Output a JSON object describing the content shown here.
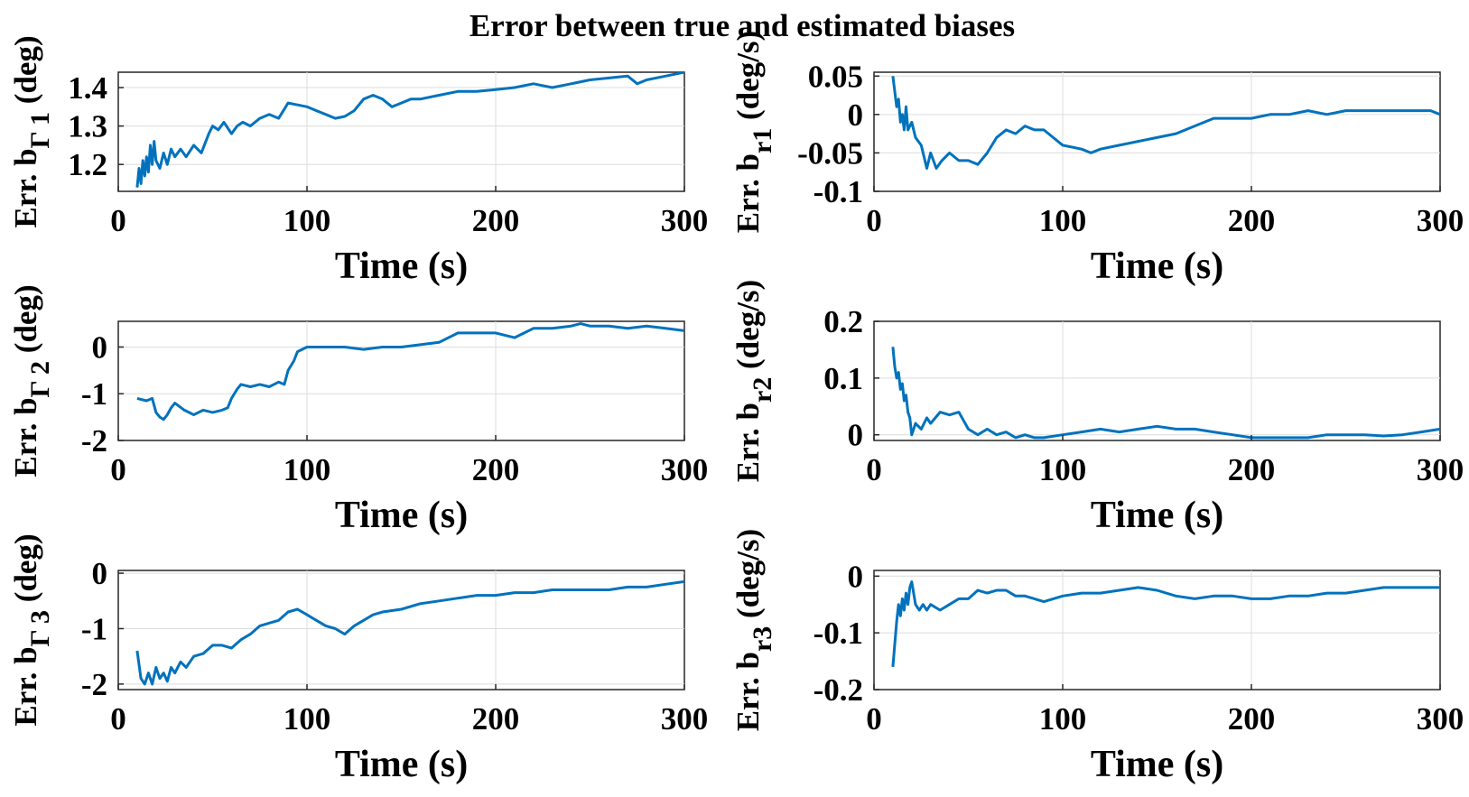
{
  "figure": {
    "title": "Error between true and estimated biases",
    "line_color": "#0072BD"
  },
  "chart_data": [
    {
      "type": "line",
      "ylabel": {
        "main": "Err. b",
        "sub": "Γ 1",
        "unit": " (deg)"
      },
      "xlabel": "Time (s)",
      "xlim": [
        0,
        300
      ],
      "ylim": [
        1.13,
        1.44
      ],
      "xticks": [
        0,
        100,
        200,
        300
      ],
      "xtick_labels": [
        "0",
        "100",
        "200",
        "300"
      ],
      "yticks": [
        1.2,
        1.3,
        1.4
      ],
      "ytick_labels": [
        "1.2",
        "1.3",
        "1.4"
      ],
      "grid": true,
      "series": [
        {
          "x": [
            10,
            11,
            12,
            13,
            14,
            15,
            16,
            17,
            18,
            19,
            20,
            22,
            24,
            26,
            28,
            30,
            33,
            36,
            40,
            44,
            48,
            50,
            53,
            56,
            60,
            63,
            66,
            70,
            75,
            80,
            85,
            90,
            95,
            100,
            105,
            110,
            115,
            120,
            125,
            130,
            135,
            140,
            145,
            150,
            155,
            160,
            170,
            180,
            190,
            200,
            210,
            220,
            230,
            240,
            250,
            260,
            270,
            275,
            280,
            290,
            300
          ],
          "y": [
            1.14,
            1.19,
            1.15,
            1.21,
            1.17,
            1.22,
            1.18,
            1.25,
            1.2,
            1.26,
            1.21,
            1.19,
            1.23,
            1.2,
            1.24,
            1.22,
            1.24,
            1.22,
            1.25,
            1.23,
            1.28,
            1.3,
            1.29,
            1.31,
            1.28,
            1.3,
            1.31,
            1.3,
            1.32,
            1.33,
            1.32,
            1.36,
            1.355,
            1.35,
            1.34,
            1.33,
            1.32,
            1.325,
            1.34,
            1.37,
            1.38,
            1.37,
            1.35,
            1.36,
            1.37,
            1.37,
            1.38,
            1.39,
            1.39,
            1.395,
            1.4,
            1.41,
            1.4,
            1.41,
            1.42,
            1.425,
            1.43,
            1.41,
            1.42,
            1.43,
            1.44
          ]
        }
      ]
    },
    {
      "type": "line",
      "ylabel": {
        "main": "Err. b",
        "sub": "r1",
        "unit": " (deg/s)"
      },
      "xlabel": "Time (s)",
      "xlim": [
        0,
        300
      ],
      "ylim": [
        -0.1,
        0.055
      ],
      "xticks": [
        0,
        100,
        200,
        300
      ],
      "xtick_labels": [
        "0",
        "100",
        "200",
        "300"
      ],
      "yticks": [
        -0.1,
        -0.05,
        0,
        0.05
      ],
      "ytick_labels": [
        "-0.1",
        "-0.05",
        "0",
        "0.05"
      ],
      "grid": true,
      "series": [
        {
          "x": [
            10,
            11,
            12,
            13,
            14,
            15,
            16,
            17,
            18,
            20,
            22,
            25,
            28,
            30,
            33,
            36,
            40,
            45,
            50,
            55,
            60,
            65,
            70,
            75,
            80,
            85,
            90,
            95,
            100,
            110,
            115,
            120,
            130,
            140,
            150,
            160,
            170,
            180,
            190,
            200,
            210,
            220,
            230,
            240,
            250,
            260,
            270,
            280,
            290,
            295,
            300
          ],
          "y": [
            0.05,
            0.03,
            0.01,
            0.02,
            -0.01,
            0.0,
            -0.02,
            0.01,
            -0.02,
            -0.01,
            -0.03,
            -0.04,
            -0.07,
            -0.05,
            -0.07,
            -0.06,
            -0.05,
            -0.06,
            -0.06,
            -0.065,
            -0.05,
            -0.03,
            -0.02,
            -0.025,
            -0.015,
            -0.02,
            -0.02,
            -0.03,
            -0.04,
            -0.045,
            -0.05,
            -0.045,
            -0.04,
            -0.035,
            -0.03,
            -0.025,
            -0.015,
            -0.005,
            -0.005,
            -0.005,
            0.0,
            0.0,
            0.005,
            0.0,
            0.005,
            0.005,
            0.005,
            0.005,
            0.005,
            0.005,
            0.0
          ]
        }
      ]
    },
    {
      "type": "line",
      "ylabel": {
        "main": "Err. b",
        "sub": "Γ 2",
        "unit": " (deg)"
      },
      "xlabel": "Time (s)",
      "xlim": [
        0,
        300
      ],
      "ylim": [
        -2,
        0.55
      ],
      "xticks": [
        0,
        100,
        200,
        300
      ],
      "xtick_labels": [
        "0",
        "100",
        "200",
        "300"
      ],
      "yticks": [
        -2,
        -1,
        0
      ],
      "ytick_labels": [
        "-2",
        "-1",
        "0"
      ],
      "grid": true,
      "series": [
        {
          "x": [
            10,
            15,
            18,
            20,
            22,
            24,
            26,
            28,
            30,
            35,
            40,
            45,
            50,
            55,
            58,
            60,
            63,
            65,
            70,
            75,
            80,
            85,
            88,
            90,
            93,
            95,
            100,
            110,
            120,
            130,
            140,
            150,
            160,
            170,
            180,
            190,
            200,
            210,
            220,
            230,
            240,
            245,
            250,
            260,
            270,
            280,
            290,
            300
          ],
          "y": [
            -1.1,
            -1.15,
            -1.1,
            -1.4,
            -1.5,
            -1.55,
            -1.45,
            -1.3,
            -1.2,
            -1.35,
            -1.45,
            -1.35,
            -1.4,
            -1.35,
            -1.3,
            -1.1,
            -0.9,
            -0.8,
            -0.85,
            -0.8,
            -0.85,
            -0.75,
            -0.8,
            -0.5,
            -0.3,
            -0.1,
            0.0,
            0.0,
            0.0,
            -0.05,
            0.0,
            0.0,
            0.05,
            0.1,
            0.3,
            0.3,
            0.3,
            0.2,
            0.4,
            0.4,
            0.45,
            0.5,
            0.45,
            0.45,
            0.4,
            0.45,
            0.4,
            0.35
          ]
        }
      ]
    },
    {
      "type": "line",
      "ylabel": {
        "main": "Err. b",
        "sub": "r2",
        "unit": " (deg/s)"
      },
      "xlabel": "Time (s)",
      "xlim": [
        0,
        300
      ],
      "ylim": [
        -0.01,
        0.2
      ],
      "xticks": [
        0,
        100,
        200,
        300
      ],
      "xtick_labels": [
        "0",
        "100",
        "200",
        "300"
      ],
      "yticks": [
        0,
        0.1,
        0.2
      ],
      "ytick_labels": [
        "0",
        "0.1",
        "0.2"
      ],
      "grid": true,
      "series": [
        {
          "x": [
            10,
            11,
            12,
            13,
            14,
            15,
            16,
            17,
            18,
            19,
            20,
            22,
            25,
            28,
            30,
            35,
            40,
            45,
            50,
            55,
            60,
            65,
            70,
            75,
            80,
            85,
            90,
            100,
            110,
            120,
            130,
            140,
            150,
            160,
            170,
            180,
            190,
            200,
            210,
            220,
            230,
            240,
            250,
            260,
            270,
            280,
            290,
            300
          ],
          "y": [
            0.155,
            0.12,
            0.1,
            0.11,
            0.08,
            0.09,
            0.06,
            0.07,
            0.04,
            0.03,
            0.0,
            0.02,
            0.01,
            0.03,
            0.02,
            0.04,
            0.035,
            0.04,
            0.01,
            0.0,
            0.01,
            0.0,
            0.005,
            -0.005,
            0.0,
            -0.005,
            -0.005,
            0.0,
            0.005,
            0.01,
            0.005,
            0.01,
            0.015,
            0.01,
            0.01,
            0.005,
            0.0,
            -0.005,
            -0.005,
            -0.005,
            -0.005,
            0.0,
            0.0,
            0.0,
            -0.002,
            0.0,
            0.005,
            0.01
          ]
        }
      ]
    },
    {
      "type": "line",
      "ylabel": {
        "main": "Err. b",
        "sub": "Γ 3",
        "unit": " (deg)"
      },
      "xlabel": "Time (s)",
      "xlim": [
        0,
        300
      ],
      "ylim": [
        -2.1,
        0.05
      ],
      "xticks": [
        0,
        100,
        200,
        300
      ],
      "xtick_labels": [
        "0",
        "100",
        "200",
        "300"
      ],
      "yticks": [
        -2,
        -1,
        0
      ],
      "ytick_labels": [
        "-2",
        "-1",
        "0"
      ],
      "grid": true,
      "series": [
        {
          "x": [
            10,
            12,
            14,
            16,
            18,
            20,
            22,
            24,
            26,
            28,
            30,
            33,
            36,
            40,
            45,
            50,
            55,
            60,
            65,
            70,
            75,
            80,
            85,
            90,
            95,
            100,
            105,
            110,
            115,
            120,
            125,
            130,
            135,
            140,
            150,
            160,
            170,
            180,
            190,
            200,
            210,
            220,
            230,
            240,
            250,
            260,
            270,
            280,
            290,
            300
          ],
          "y": [
            -1.4,
            -1.9,
            -2.0,
            -1.8,
            -2.0,
            -1.7,
            -1.9,
            -1.8,
            -1.95,
            -1.7,
            -1.8,
            -1.6,
            -1.7,
            -1.5,
            -1.45,
            -1.3,
            -1.3,
            -1.35,
            -1.2,
            -1.1,
            -0.95,
            -0.9,
            -0.85,
            -0.7,
            -0.65,
            -0.75,
            -0.85,
            -0.95,
            -1.0,
            -1.1,
            -0.95,
            -0.85,
            -0.75,
            -0.7,
            -0.65,
            -0.55,
            -0.5,
            -0.45,
            -0.4,
            -0.4,
            -0.35,
            -0.35,
            -0.3,
            -0.3,
            -0.3,
            -0.3,
            -0.25,
            -0.25,
            -0.2,
            -0.15
          ]
        }
      ]
    },
    {
      "type": "line",
      "ylabel": {
        "main": "Err. b",
        "sub": "r3",
        "unit": " (deg/s)"
      },
      "xlabel": "Time (s)",
      "xlim": [
        0,
        300
      ],
      "ylim": [
        -0.2,
        0.01
      ],
      "xticks": [
        0,
        100,
        200,
        300
      ],
      "xtick_labels": [
        "0",
        "100",
        "200",
        "300"
      ],
      "yticks": [
        -0.2,
        -0.1,
        0
      ],
      "ytick_labels": [
        "-0.2",
        "-0.1",
        "0"
      ],
      "grid": true,
      "series": [
        {
          "x": [
            10,
            11,
            12,
            13,
            14,
            15,
            16,
            17,
            18,
            19,
            20,
            22,
            24,
            26,
            28,
            30,
            35,
            40,
            45,
            50,
            55,
            60,
            65,
            70,
            75,
            80,
            85,
            90,
            100,
            110,
            120,
            130,
            140,
            150,
            160,
            170,
            180,
            190,
            200,
            210,
            220,
            230,
            240,
            250,
            260,
            270,
            280,
            290,
            300
          ],
          "y": [
            -0.16,
            -0.12,
            -0.08,
            -0.05,
            -0.07,
            -0.04,
            -0.06,
            -0.03,
            -0.05,
            -0.02,
            -0.01,
            -0.05,
            -0.06,
            -0.05,
            -0.06,
            -0.05,
            -0.06,
            -0.05,
            -0.04,
            -0.04,
            -0.025,
            -0.03,
            -0.025,
            -0.025,
            -0.035,
            -0.035,
            -0.04,
            -0.045,
            -0.035,
            -0.03,
            -0.03,
            -0.025,
            -0.02,
            -0.025,
            -0.035,
            -0.04,
            -0.035,
            -0.035,
            -0.04,
            -0.04,
            -0.035,
            -0.035,
            -0.03,
            -0.03,
            -0.025,
            -0.02,
            -0.02,
            -0.02,
            -0.02
          ]
        }
      ]
    }
  ]
}
